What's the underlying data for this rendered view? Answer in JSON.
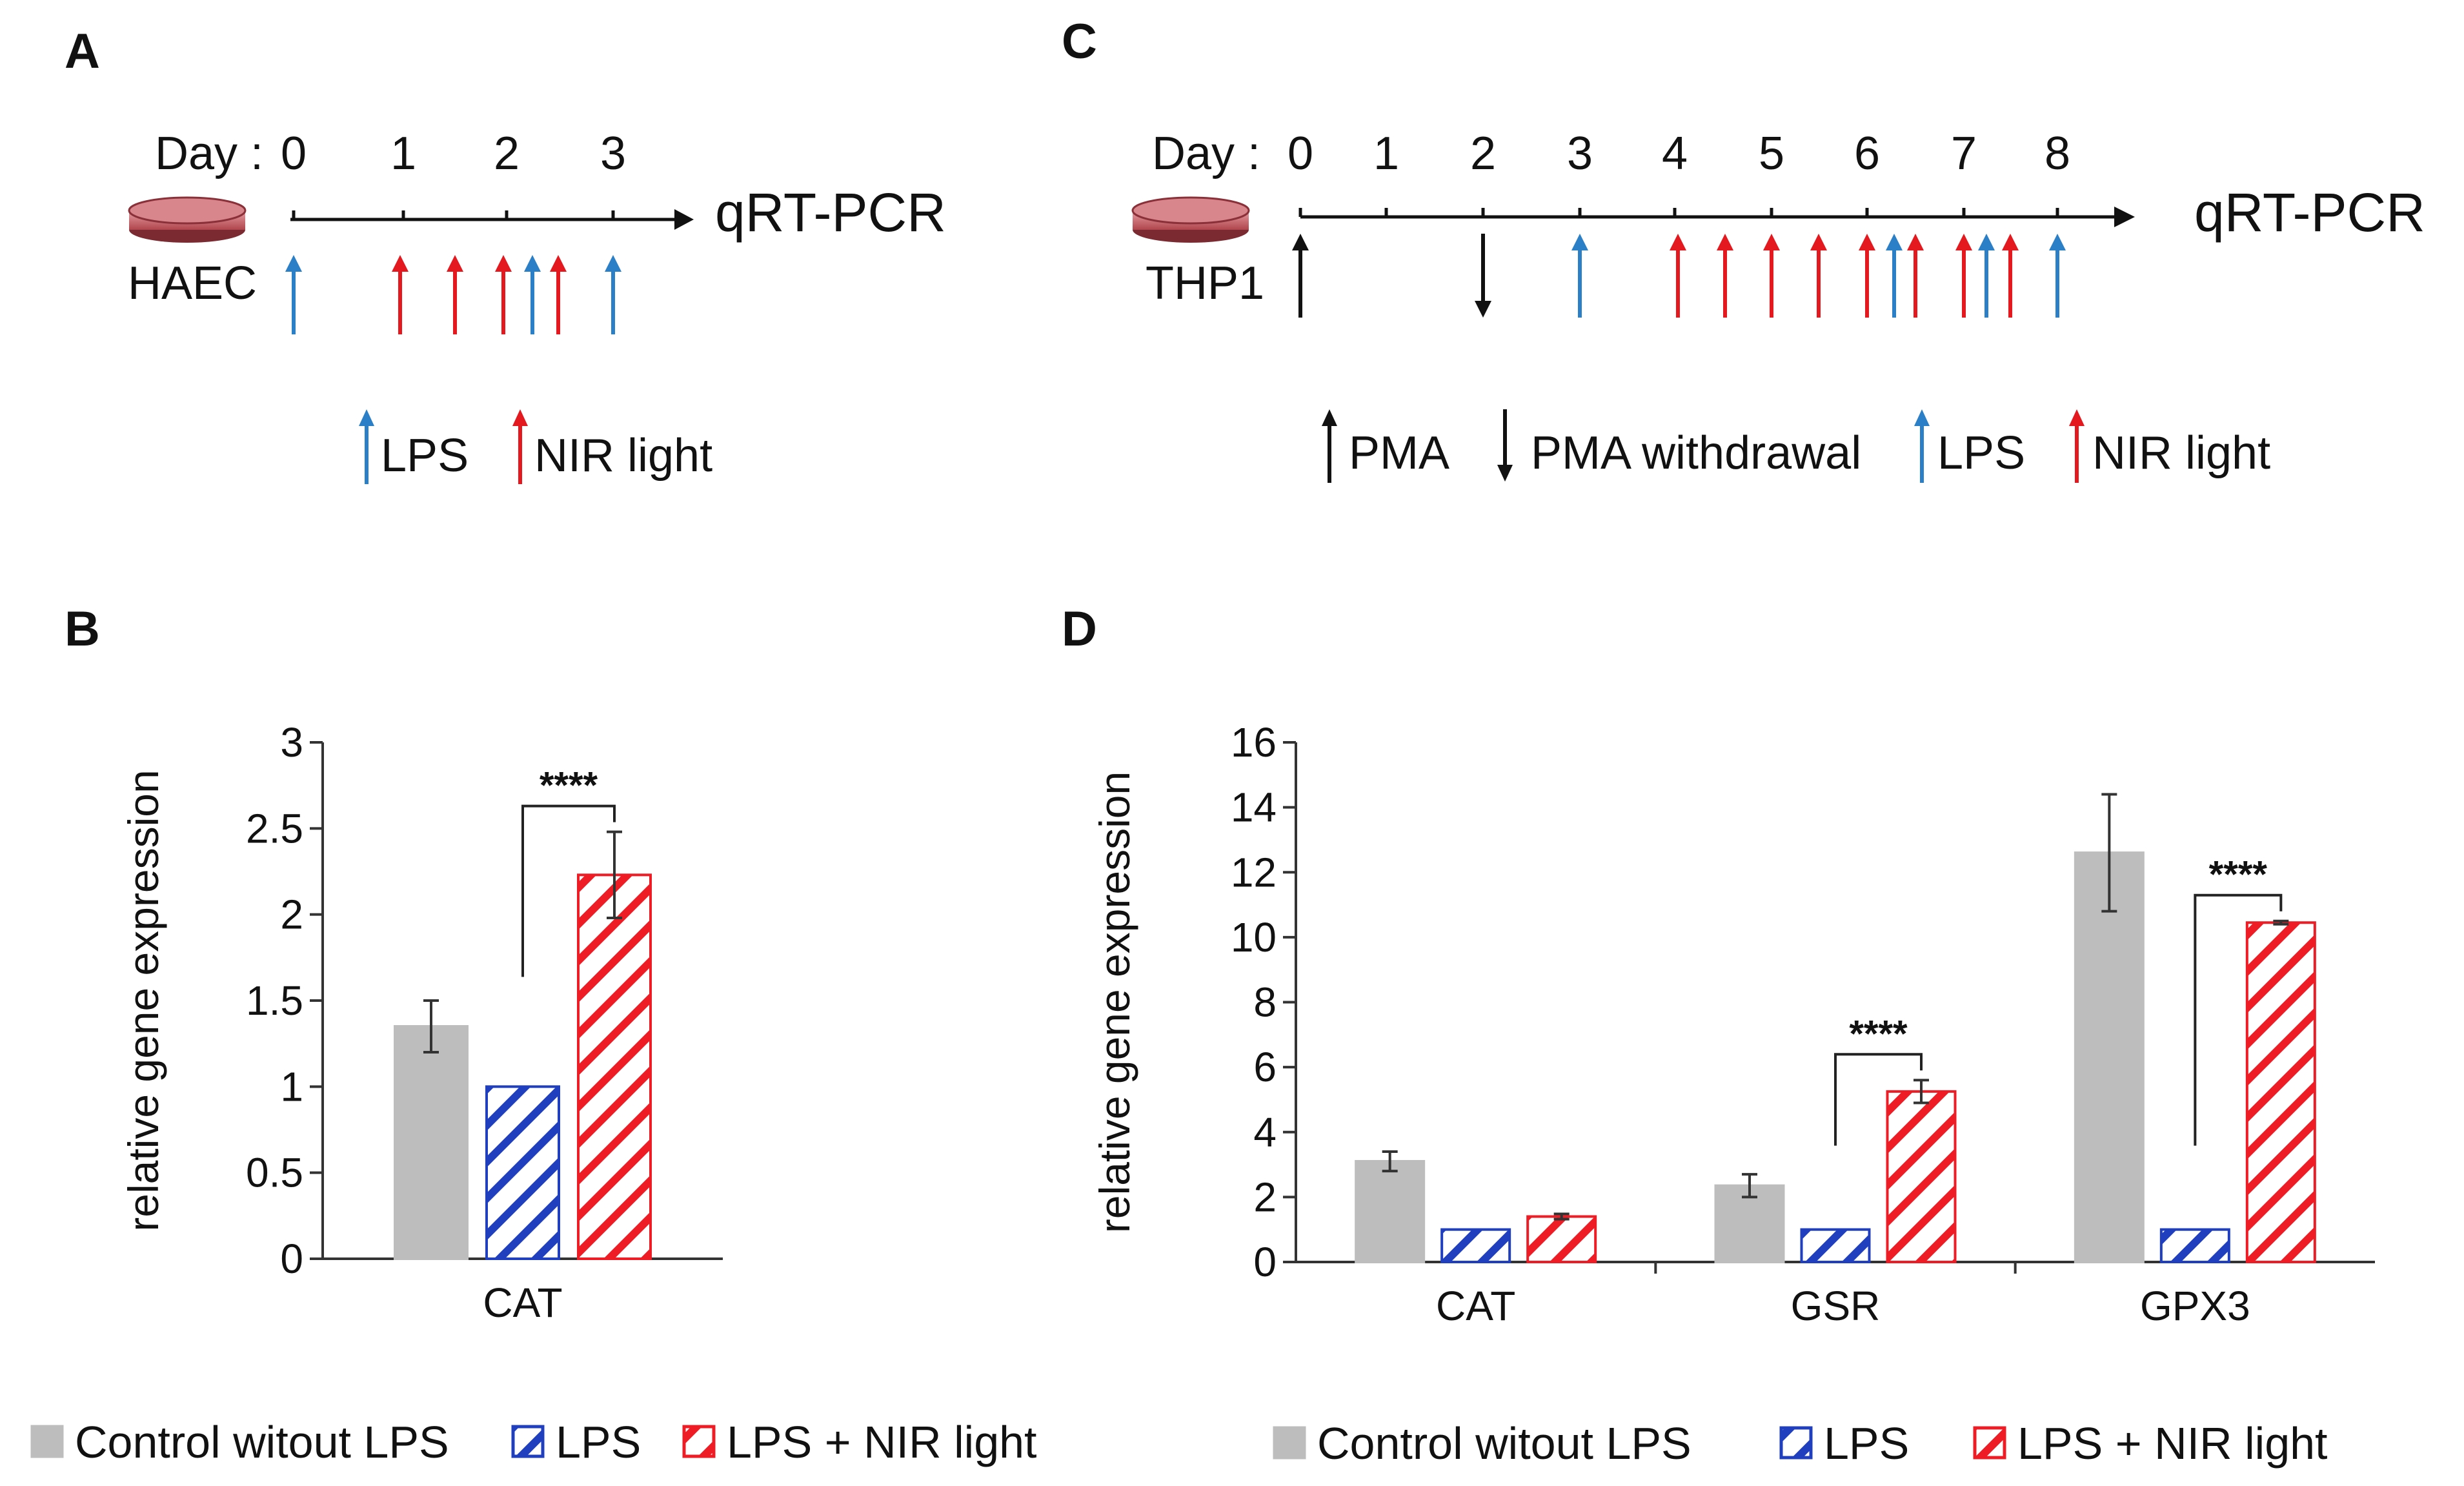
{
  "panels": {
    "A": {
      "letter": "A",
      "day_label": "Day :",
      "days": [
        "0",
        "1",
        "2",
        "3"
      ],
      "cell_line": "HAEC",
      "readout": "qRT-PCR",
      "legend": {
        "lps": "LPS",
        "nir": "NIR light"
      }
    },
    "C": {
      "letter": "C",
      "day_label": "Day :",
      "days": [
        "0",
        "1",
        "2",
        "3",
        "4",
        "5",
        "6",
        "7",
        "8"
      ],
      "cell_line": "THP1",
      "readout": "qRT-PCR",
      "legend": {
        "pma": "PMA",
        "pma_withdrawal": "PMA withdrawal",
        "lps": "LPS",
        "nir": "NIR light"
      }
    },
    "B": {
      "letter": "B"
    },
    "D": {
      "letter": "D"
    }
  },
  "colors": {
    "control": "#bdbdbd",
    "lps": "#1f3fbf",
    "nir": "#ee1c24",
    "lps_arrow": "#2a7fc6",
    "nir_arrow": "#e3191f",
    "black": "#111111"
  },
  "chart_data": [
    {
      "panel": "B",
      "type": "bar",
      "ylabel": "relative gene expression",
      "ylim": [
        0,
        3
      ],
      "yticks": [
        "0",
        "0.5",
        "1",
        "1.5",
        "2",
        "2.5",
        "3"
      ],
      "categories": [
        "CAT"
      ],
      "series": [
        {
          "name": "Control witout LPS",
          "values": [
            1.35
          ],
          "errors": [
            0.15
          ],
          "pattern": "solid"
        },
        {
          "name": "LPS",
          "values": [
            1.0
          ],
          "errors": [
            0
          ],
          "pattern": "hatched"
        },
        {
          "name": "LPS + NIR light",
          "values": [
            2.23
          ],
          "errors": [
            0.25
          ],
          "pattern": "hatched"
        }
      ],
      "significance": [
        {
          "category": "CAT",
          "label": "****"
        }
      ],
      "legend": [
        "Control witout LPS",
        "LPS",
        "LPS + NIR light"
      ]
    },
    {
      "panel": "D",
      "type": "bar",
      "ylabel": "relative gene expression",
      "ylim": [
        0,
        16
      ],
      "yticks": [
        "0",
        "2",
        "4",
        "6",
        "8",
        "10",
        "12",
        "14",
        "16"
      ],
      "categories": [
        "CAT",
        "GSR",
        "GPX3"
      ],
      "series": [
        {
          "name": "Control witout LPS",
          "values": [
            3.1,
            2.35,
            12.6
          ],
          "errors": [
            0.3,
            0.35,
            1.8
          ],
          "pattern": "solid"
        },
        {
          "name": "LPS",
          "values": [
            1.0,
            1.0,
            1.0
          ],
          "errors": [
            0,
            0,
            0
          ],
          "pattern": "hatched"
        },
        {
          "name": "LPS + NIR light",
          "values": [
            1.4,
            5.25,
            10.45
          ],
          "errors": [
            0.08,
            0.35,
            0.05
          ],
          "pattern": "hatched"
        }
      ],
      "significance": [
        {
          "category": "GSR",
          "label": "****"
        },
        {
          "category": "GPX3",
          "label": "****"
        }
      ],
      "legend": [
        "Control witout LPS",
        "LPS",
        "LPS + NIR light"
      ]
    }
  ]
}
